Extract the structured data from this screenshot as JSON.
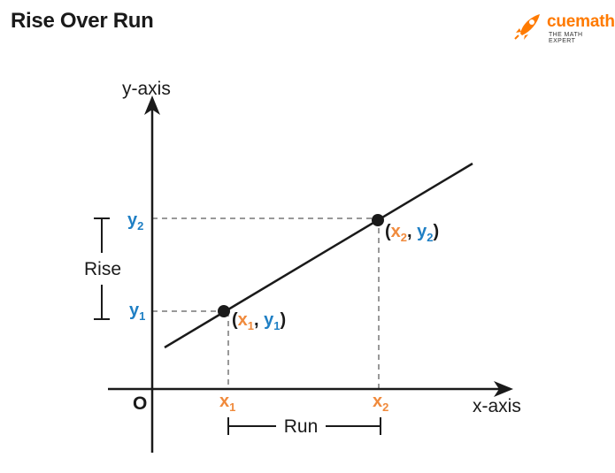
{
  "title": "Rise Over Run",
  "logo": {
    "word": "cuemath",
    "tagline": "THE MATH EXPERT"
  },
  "axes": {
    "x_label": "x-axis",
    "y_label": "y-axis",
    "origin": "O"
  },
  "points": {
    "p1": {
      "open": "(",
      "x": "x",
      "x_sub": "1",
      "comma": ", ",
      "y": "y",
      "y_sub": "1",
      "close": ")"
    },
    "p2": {
      "open": "(",
      "x": "x",
      "x_sub": "2",
      "comma": ", ",
      "y": "y",
      "y_sub": "2",
      "close": ")"
    }
  },
  "ticks": {
    "x1": {
      "base": "x",
      "sub": "1"
    },
    "x2": {
      "base": "x",
      "sub": "2"
    },
    "y1": {
      "base": "y",
      "sub": "1"
    },
    "y2": {
      "base": "y",
      "sub": "2"
    }
  },
  "rise_label": "Rise",
  "run_label": "Run",
  "colors": {
    "x_color": "#f08a3c",
    "y_color": "#1f7fc4",
    "line": "#1a1a1a",
    "logo": "#ff7a00"
  }
}
